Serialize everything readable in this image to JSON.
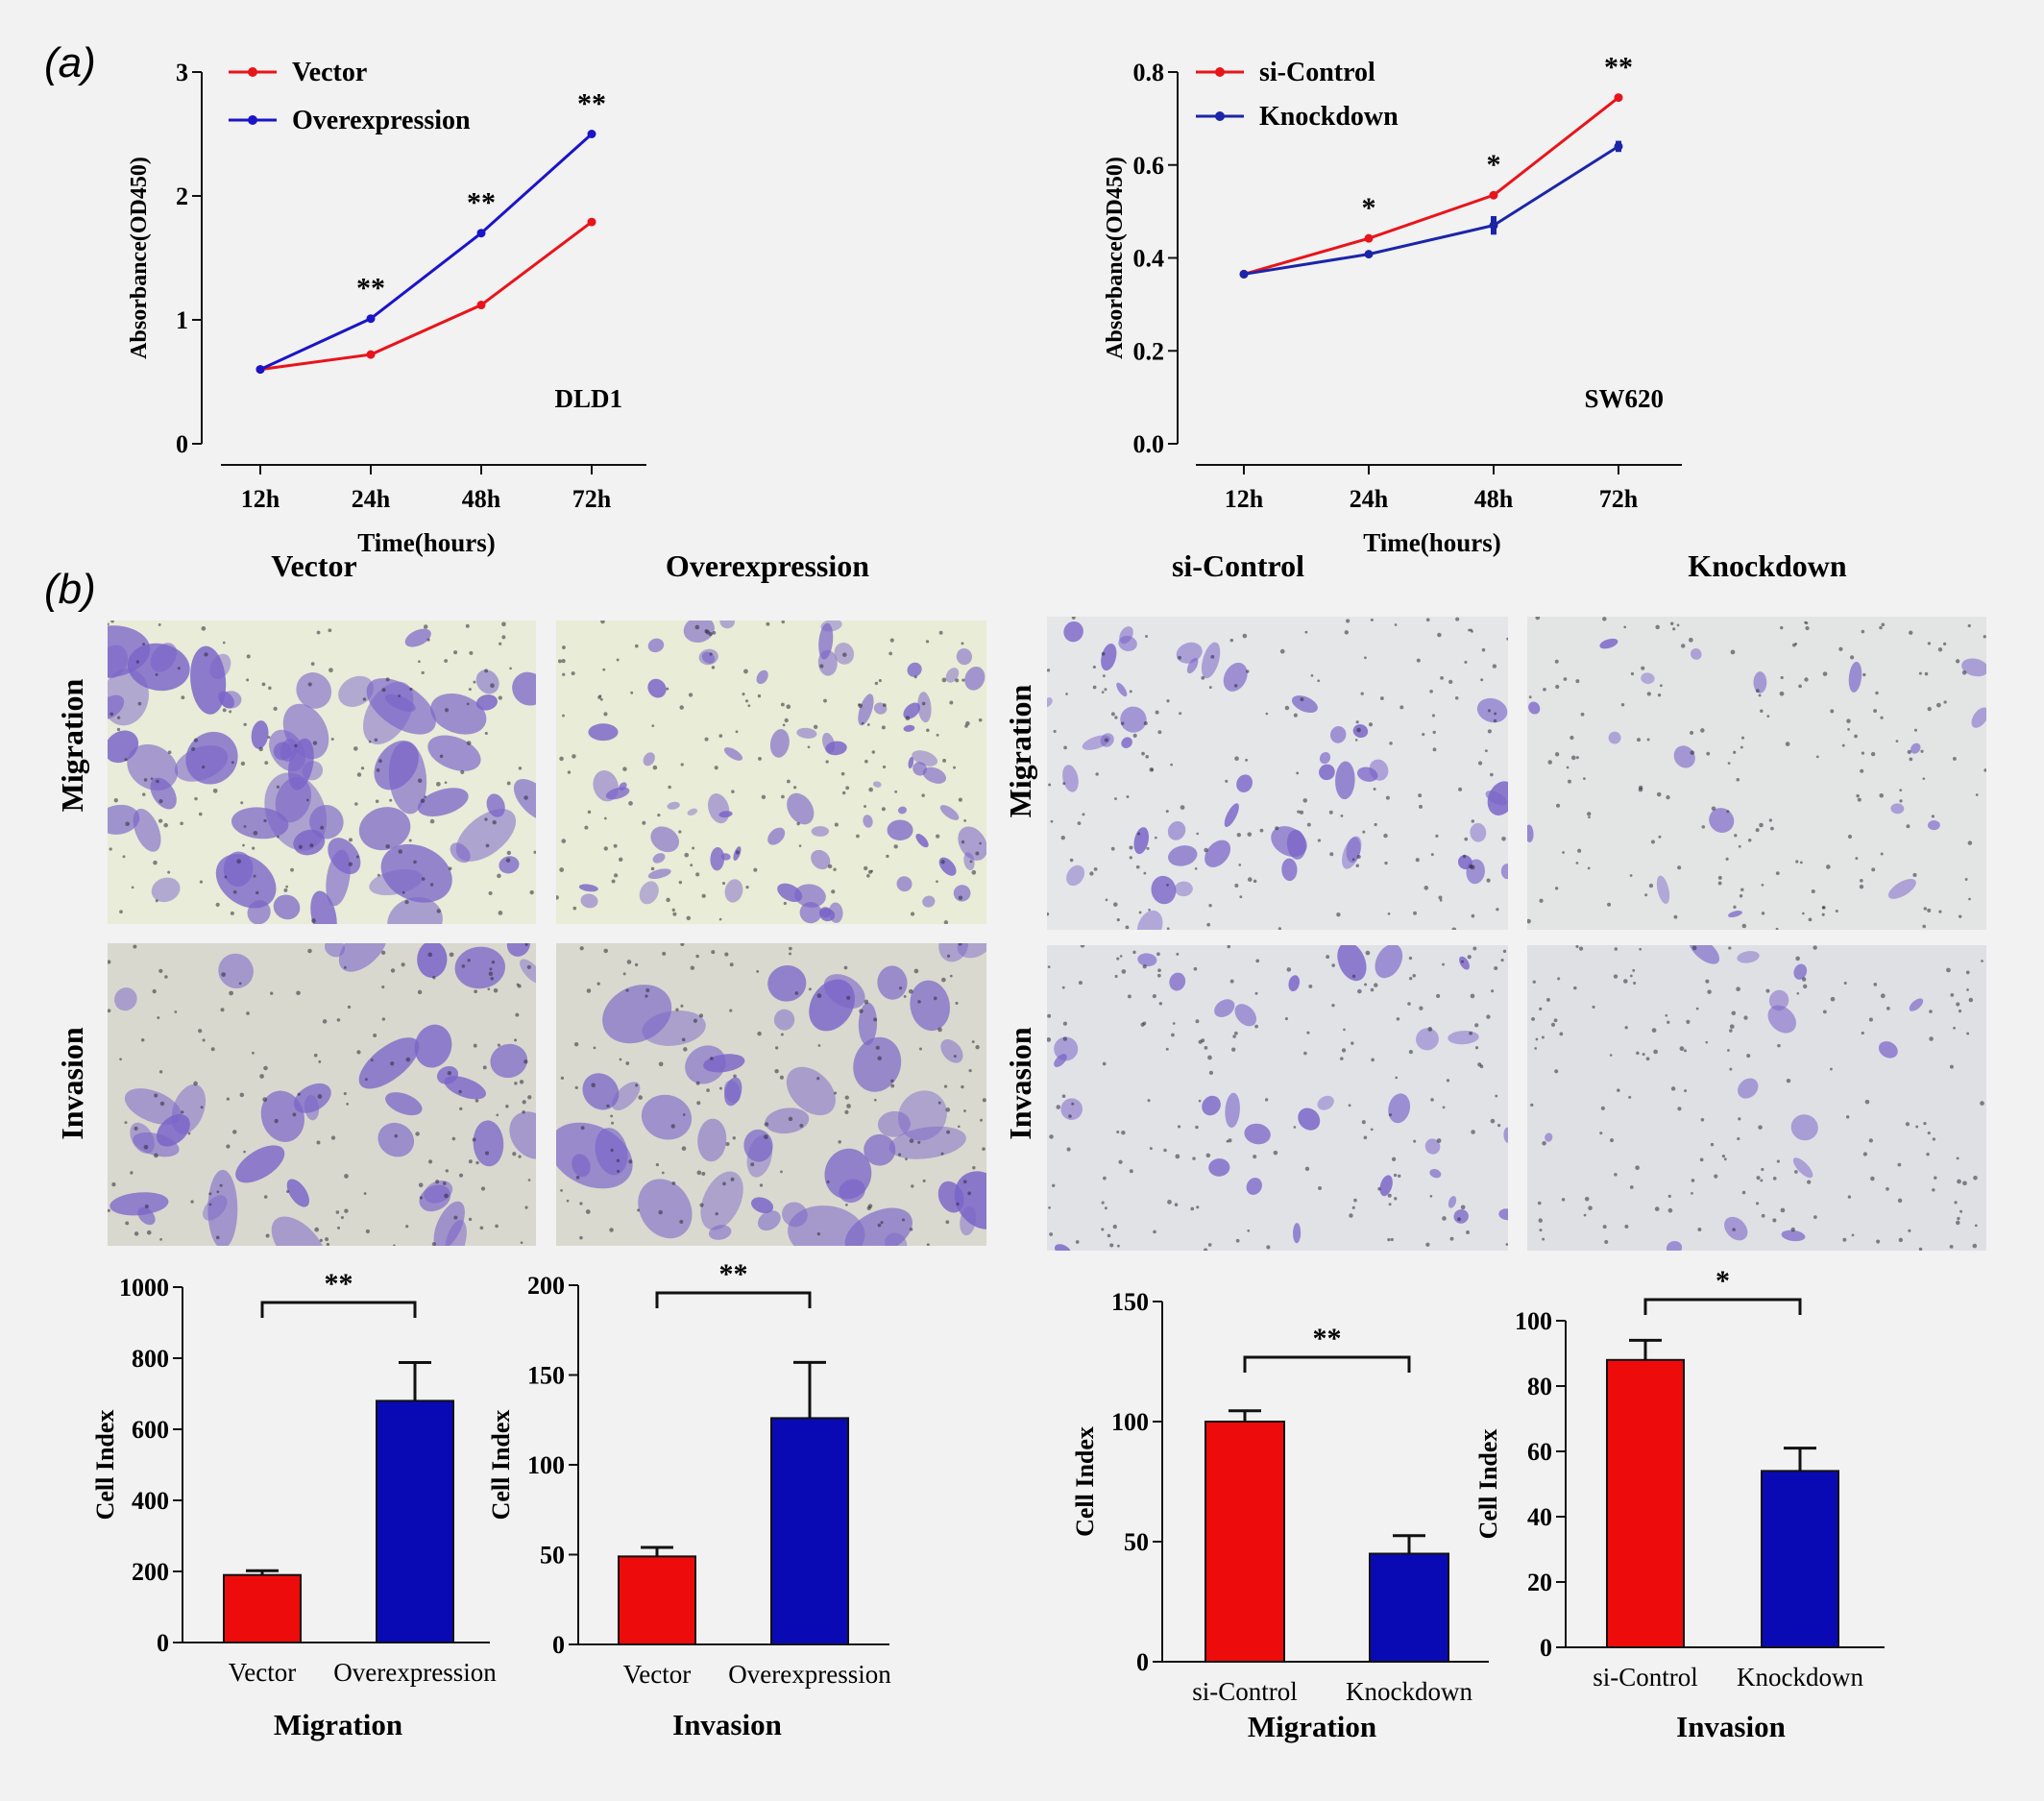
{
  "figure": {
    "panel_a_label": "(a)",
    "panel_b_label": "(b)",
    "micro_col_titles": [
      "Vector",
      "Overexpression",
      "si-Control",
      "Knockdown"
    ],
    "micro_row_labels": [
      "Migration",
      "Invasion",
      "Migration",
      "Invasion"
    ]
  },
  "colors": {
    "red": "#e8141b",
    "blue": "#1b14c8",
    "navy": "#1c25a8",
    "bar_red": "#ee0b0b",
    "bar_blue": "#0a0ab4",
    "stain": "#7a64c8",
    "dot": "#2a2a35"
  },
  "chart_data": [
    {
      "type": "line",
      "x": [
        "12h",
        "24h",
        "48h",
        "72h"
      ],
      "series": [
        {
          "name": "Vector",
          "values": [
            0.6,
            0.72,
            1.12,
            1.79
          ]
        },
        {
          "name": "Overexpression",
          "values": [
            0.6,
            1.01,
            1.7,
            2.5
          ]
        }
      ],
      "xlabel": "Time(hours)",
      "ylabel": "Absorbance(OD450)",
      "ylim": [
        0,
        3
      ],
      "yticks": [
        "0",
        "1",
        "2",
        "3"
      ],
      "annotations": [
        "",
        "**",
        "**",
        "**"
      ],
      "tag": "DLD1",
      "legend": "top-left",
      "grid": false
    },
    {
      "type": "line",
      "x": [
        "12h",
        "24h",
        "48h",
        "72h"
      ],
      "series": [
        {
          "name": "si-Control",
          "values": [
            0.365,
            0.442,
            0.535,
            0.745
          ]
        },
        {
          "name": "Knockdown",
          "values": [
            0.365,
            0.408,
            0.47,
            0.64
          ],
          "error": [
            0,
            0,
            0.02,
            0.012
          ]
        }
      ],
      "xlabel": "Time(hours)",
      "ylabel": "Absorbance(OD450)",
      "ylim": [
        0,
        0.8
      ],
      "yticks": [
        "0.0",
        "0.2",
        "0.4",
        "0.6",
        "0.8"
      ],
      "annotations": [
        "",
        "*",
        "*",
        "**"
      ],
      "tag": "SW620",
      "legend": "top-left",
      "grid": false
    },
    {
      "type": "bar",
      "categories": [
        "Vector",
        "Overexpression"
      ],
      "values": [
        190,
        680
      ],
      "errors": [
        12,
        108
      ],
      "xlabel": "Migration",
      "ylabel": "Cell Index",
      "ylim": [
        0,
        1000
      ],
      "yticks": [
        "0",
        "200",
        "400",
        "600",
        "800",
        "1000"
      ],
      "significance": "**"
    },
    {
      "type": "bar",
      "categories": [
        "Vector",
        "Overexpression"
      ],
      "values": [
        49,
        126
      ],
      "errors": [
        5,
        31
      ],
      "xlabel": "Invasion",
      "ylabel": "Cell Index",
      "ylim": [
        0,
        200
      ],
      "yticks": [
        "0",
        "50",
        "100",
        "150",
        "200"
      ],
      "significance": "**"
    },
    {
      "type": "bar",
      "categories": [
        "si-Control",
        "Knockdown"
      ],
      "values": [
        100,
        45
      ],
      "errors": [
        4.5,
        7.5
      ],
      "xlabel": "Migration",
      "ylabel": "Cell Index",
      "ylim": [
        0,
        150
      ],
      "yticks": [
        "0",
        "50",
        "100",
        "150"
      ],
      "significance": "**"
    },
    {
      "type": "bar",
      "categories": [
        "si-Control",
        "Knockdown"
      ],
      "values": [
        88,
        54
      ],
      "errors": [
        6,
        7
      ],
      "xlabel": "Invasion",
      "ylabel": "Cell Index",
      "ylim": [
        0,
        100
      ],
      "yticks": [
        "0",
        "20",
        "40",
        "60",
        "80",
        "100"
      ],
      "significance": "*"
    }
  ]
}
